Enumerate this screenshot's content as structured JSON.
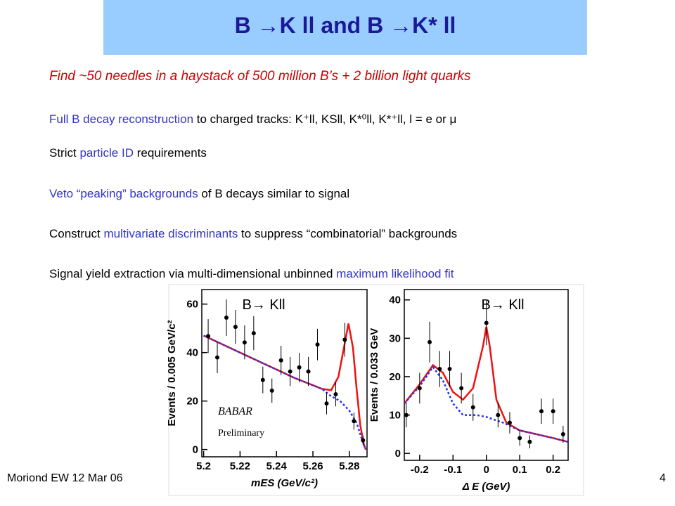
{
  "header": {
    "title": "B →K ll and B →K* ll"
  },
  "subtitle": "Find ~50 needles in a haystack of 500 million B’s + 2 billion light quarks",
  "bullets": [
    [
      {
        "text": "Full B decay reconstruction",
        "color": "#3333cc"
      },
      {
        "text": " to charged tracks:  K⁺ll, KSll, K*⁰ll, K*⁺ll, l = e or μ",
        "color": "#000000"
      }
    ],
    [
      {
        "text": "Strict ",
        "color": "#000000"
      },
      {
        "text": "particle ID",
        "color": "#3333cc"
      },
      {
        "text": " requirements",
        "color": "#000000"
      }
    ],
    [
      {
        "text": "Veto “peaking” backgrounds",
        "color": "#3333cc"
      },
      {
        "text": " of B decays similar to signal",
        "color": "#000000"
      }
    ],
    [
      {
        "text": "Construct ",
        "color": "#000000"
      },
      {
        "text": "multivariate discriminants",
        "color": "#3333cc"
      },
      {
        "text": " to suppress “combinatorial” backgrounds",
        "color": "#000000"
      }
    ],
    [
      {
        "text": "Signal yield extraction via multi-dimensional unbinned ",
        "color": "#000000"
      },
      {
        "text": "maximum likelihood fit",
        "color": "#3333cc"
      }
    ]
  ],
  "footer": {
    "left": "Moriond EW 12 Mar 06",
    "page": "4"
  },
  "chart_data": [
    {
      "type": "scatter",
      "annotation": "B→ Kll",
      "watermark": "BABAR",
      "note": "Preliminary",
      "xlabel": "mES  (GeV/c²)",
      "ylabel": "Events / 0.005 GeV/c²",
      "xlim": [
        5.199,
        5.2897
      ],
      "ylim": [
        -3,
        66
      ],
      "xticks": [
        5.2,
        5.22,
        5.24,
        5.26,
        5.28
      ],
      "yticks": [
        0,
        20,
        40,
        60
      ],
      "x": [
        5.2025,
        5.2075,
        5.2125,
        5.2175,
        5.2225,
        5.2275,
        5.2325,
        5.2375,
        5.2425,
        5.2475,
        5.2525,
        5.2575,
        5.2625,
        5.2675,
        5.2725,
        5.2775,
        5.2825,
        5.2875
      ],
      "values": [
        46.8,
        38,
        54.4,
        50.6,
        44.2,
        48,
        28.7,
        24.3,
        36.8,
        32.2,
        33.9,
        32.2,
        43.3,
        19,
        22.8,
        45.3,
        11.7,
        3.8
      ],
      "errors": [
        7,
        6.5,
        7.5,
        7,
        7,
        7,
        5.5,
        5,
        6,
        6,
        6,
        6,
        6.5,
        4.5,
        5,
        7,
        3.5,
        2
      ],
      "color": "#000000",
      "series": [
        {
          "color": "#ee1111",
          "dash": false,
          "x": [
            5.2,
            5.21,
            5.22,
            5.23,
            5.24,
            5.25,
            5.26,
            5.265,
            5.27,
            5.274,
            5.277,
            5.2795,
            5.282,
            5.284,
            5.286,
            5.288,
            5.289
          ],
          "values": [
            47,
            43.5,
            40,
            36.5,
            33,
            29.5,
            26.5,
            25,
            24.5,
            30,
            42,
            52,
            42,
            25,
            10,
            2,
            0
          ]
        },
        {
          "color": "#2233ee",
          "dash": true,
          "x": [
            5.2,
            5.21,
            5.22,
            5.23,
            5.24,
            5.25,
            5.26,
            5.265,
            5.27,
            5.275,
            5.28,
            5.284,
            5.287,
            5.289
          ],
          "values": [
            47,
            43.5,
            40,
            36.5,
            33,
            29.5,
            26.5,
            25,
            22,
            20,
            16,
            11,
            4,
            0
          ]
        }
      ]
    },
    {
      "type": "scatter",
      "annotation": "B→ Kll",
      "xlabel": "Δ E (GeV)",
      "ylabel": "Events / 0.033 GeV",
      "xlim": [
        -0.246,
        0.245
      ],
      "ylim": [
        -1.8,
        42.7
      ],
      "xticks": [
        -0.2,
        -0.1,
        0,
        0.1,
        0.2
      ],
      "yticks": [
        0,
        10,
        20,
        30,
        40
      ],
      "x": [
        -0.24,
        -0.2,
        -0.17,
        -0.14,
        -0.11,
        -0.075,
        -0.04,
        0,
        0.035,
        0.07,
        0.1,
        0.13,
        0.165,
        0.2,
        0.23
      ],
      "values": [
        10,
        17,
        29,
        22,
        22,
        17,
        12,
        34,
        10,
        8,
        4,
        3,
        11,
        11,
        5
      ],
      "errors": [
        3.2,
        4,
        5.3,
        4.7,
        4.7,
        4,
        3.5,
        5.8,
        3.2,
        2.8,
        2,
        1.7,
        3.3,
        3.3,
        2.2
      ],
      "color": "#000000",
      "series": [
        {
          "color": "#ee1111",
          "dash": false,
          "x": [
            -0.246,
            -0.2,
            -0.16,
            -0.13,
            -0.1,
            -0.07,
            -0.04,
            -0.01,
            0,
            0.01,
            0.03,
            0.06,
            0.1,
            0.15,
            0.2,
            0.245
          ],
          "values": [
            13,
            18,
            23,
            21,
            16,
            14,
            17,
            28,
            33,
            28,
            14,
            8,
            6,
            5,
            4,
            3
          ]
        },
        {
          "color": "#2233ee",
          "dash": true,
          "x": [
            -0.246,
            -0.2,
            -0.16,
            -0.13,
            -0.1,
            -0.07,
            -0.03,
            0,
            0.05,
            0.1,
            0.2,
            0.245
          ],
          "values": [
            13,
            17.5,
            22.5,
            19,
            13,
            10,
            10,
            9.5,
            8,
            6,
            4,
            3
          ]
        }
      ]
    }
  ]
}
